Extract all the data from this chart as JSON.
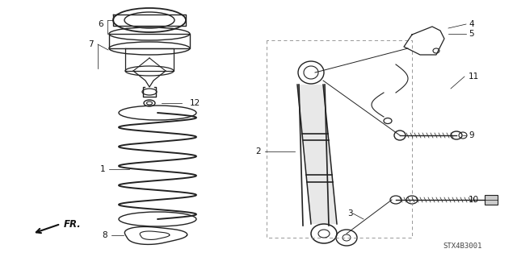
{
  "bg_color": "#ffffff",
  "line_color": "#222222",
  "text_color": "#111111",
  "diagram_code": "STX4B3001",
  "fr_label": "FR.",
  "figsize": [
    6.4,
    3.19
  ],
  "dpi": 100
}
